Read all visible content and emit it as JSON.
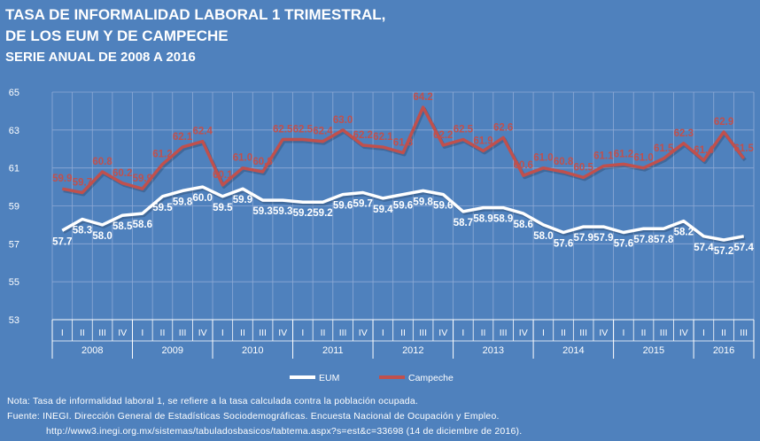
{
  "title": {
    "line1": "TASA DE INFORMALIDAD LABORAL 1 TRIMESTRAL,",
    "line2": "DE LOS EUM Y DE CAMPECHE",
    "line3": "SERIE ANUAL DE 2008 A 2016"
  },
  "notes": {
    "note": "Nota: Tasa de informalidad laboral 1, se refiere a la tasa calculada contra la población ocupada.",
    "source": "Fuente:  INEGI. Dirección General de Estadísticas Sociodemográficas. Encuesta Nacional de Ocupación y Empleo.",
    "url": "http://www3.inegi.org.mx/sistemas/tabuladosbasicos/tabtema.aspx?s=est&c=33698 (14 de diciembre de 2016)."
  },
  "chart_data": {
    "type": "line",
    "title": "TASA DE INFORMALIDAD LABORAL 1 TRIMESTRAL, DE LOS EUM Y DE CAMPECHE",
    "subtitle": "SERIE ANUAL DE 2008 A 2016",
    "ylim": [
      53,
      65
    ],
    "yticks": [
      53,
      55,
      57,
      59,
      61,
      63,
      65
    ],
    "grid": true,
    "legend_position": "bottom",
    "quarters": [
      "I",
      "II",
      "III",
      "IV",
      "I",
      "II",
      "III",
      "IV",
      "I",
      "II",
      "III",
      "IV",
      "I",
      "II",
      "III",
      "IV",
      "I",
      "II",
      "III",
      "IV",
      "I",
      "II",
      "III",
      "IV",
      "I",
      "II",
      "III",
      "IV",
      "I",
      "II",
      "III",
      "IV",
      "I",
      "II",
      "III"
    ],
    "years": [
      {
        "label": "2008",
        "quarters": 4
      },
      {
        "label": "2009",
        "quarters": 4
      },
      {
        "label": "2010",
        "quarters": 4
      },
      {
        "label": "2011",
        "quarters": 4
      },
      {
        "label": "2012",
        "quarters": 4
      },
      {
        "label": "2013",
        "quarters": 4
      },
      {
        "label": "2014",
        "quarters": 4
      },
      {
        "label": "2015",
        "quarters": 4
      },
      {
        "label": "2016",
        "quarters": 3
      }
    ],
    "series": [
      {
        "name": "EUM",
        "color": "#ffffff",
        "values": [
          57.7,
          58.3,
          58.0,
          58.5,
          58.6,
          59.5,
          59.8,
          60.0,
          59.5,
          59.9,
          59.3,
          59.3,
          59.2,
          59.2,
          59.6,
          59.7,
          59.4,
          59.6,
          59.8,
          59.6,
          58.7,
          58.9,
          58.9,
          58.6,
          58.0,
          57.6,
          57.9,
          57.9,
          57.6,
          57.8,
          57.8,
          58.2,
          57.4,
          57.2,
          57.4
        ]
      },
      {
        "name": "Campeche",
        "color": "#c0504d",
        "values": [
          59.9,
          59.7,
          60.8,
          60.2,
          59.9,
          61.2,
          62.1,
          62.4,
          60.1,
          61.0,
          60.8,
          62.5,
          62.5,
          62.4,
          63.0,
          62.2,
          62.1,
          61.8,
          64.2,
          62.2,
          62.5,
          61.9,
          62.6,
          60.6,
          61.0,
          60.8,
          60.5,
          61.1,
          61.2,
          61.0,
          61.5,
          62.3,
          61.4,
          62.9,
          61.5
        ]
      }
    ]
  }
}
